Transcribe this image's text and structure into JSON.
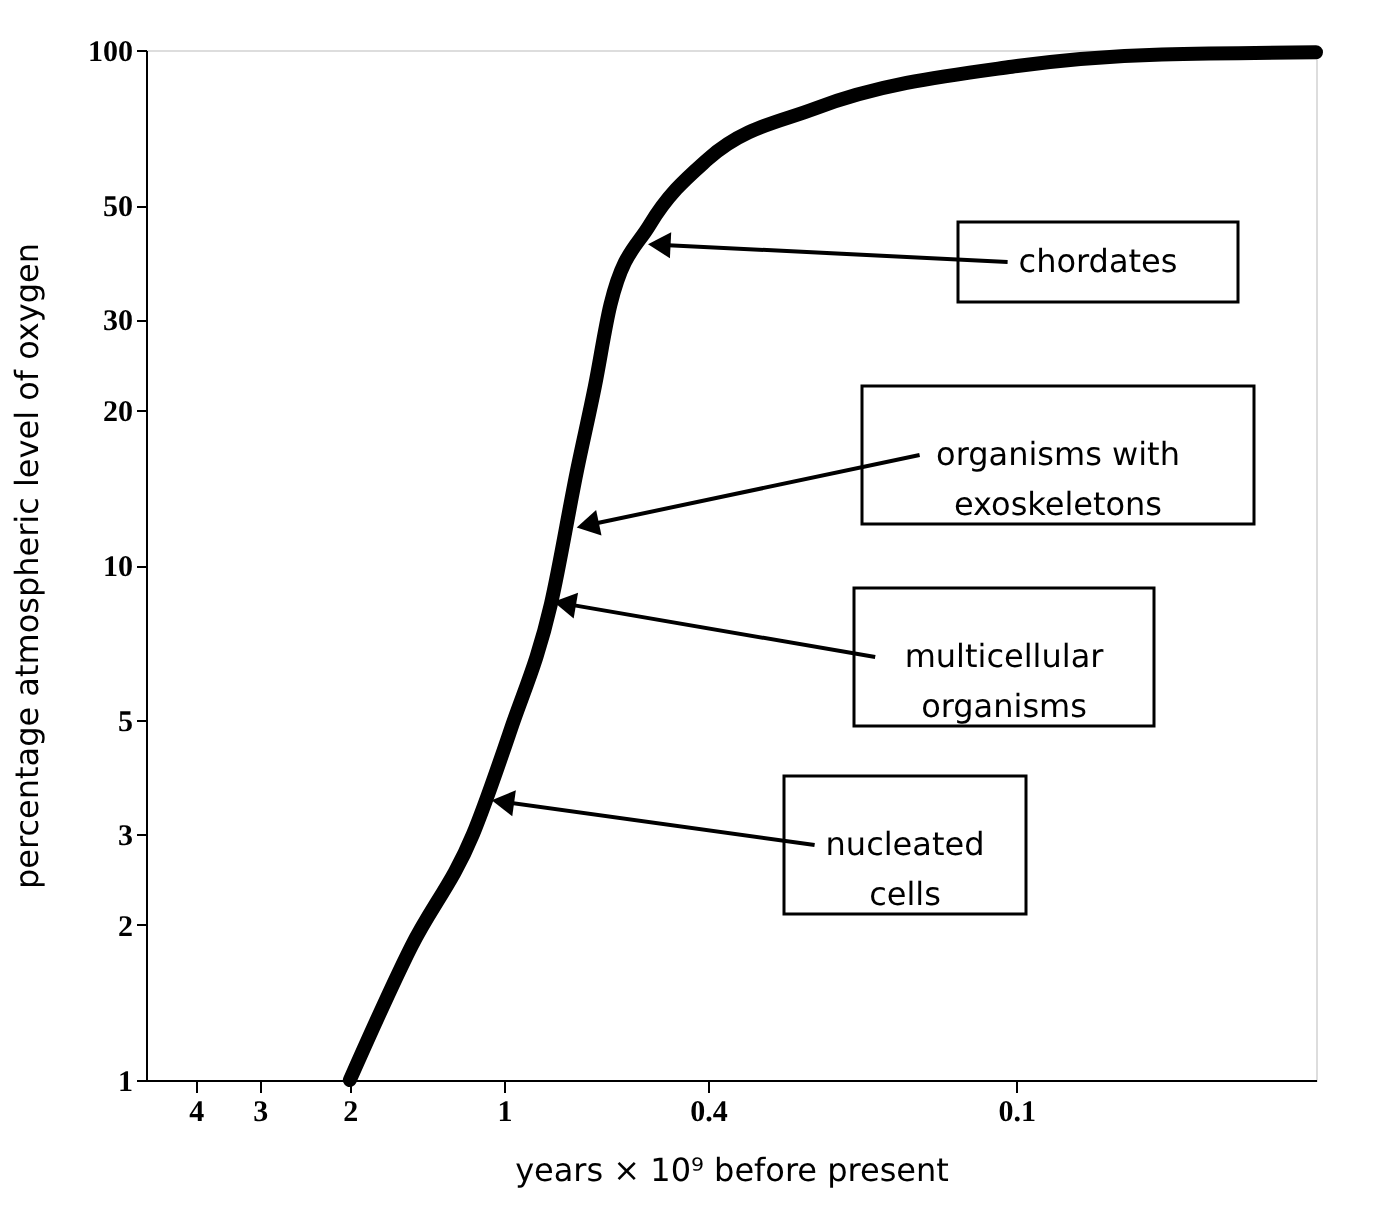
{
  "chart_data": {
    "type": "line",
    "xlabel": "years × 10⁹ before present",
    "ylabel": "percentage atmospheric level of oxygen",
    "x": [
      2,
      1.52,
      1.15,
      0.97,
      0.81,
      0.72,
      0.665,
      0.62,
      0.52,
      0.4,
      0.247,
      0.102,
      0.052,
      0.026
    ],
    "series": [
      {
        "color": "#000000",
        "values": [
          1,
          1.81,
          3.0,
          4.8,
          8.4,
          15.3,
          22.2,
          32,
          45.7,
          61.4,
          77,
          92.8,
          98,
          99
        ]
      }
    ],
    "xlim": [
      5,
      0.026
    ],
    "ylim": [
      1,
      100
    ],
    "xticks": [
      4,
      3,
      2,
      1,
      0.4,
      0.1
    ],
    "yticks": [
      1,
      2,
      3,
      5,
      10,
      20,
      30,
      50,
      100
    ],
    "log": "xy",
    "grid": false,
    "legend": false,
    "marker": "none",
    "line_style": "solid",
    "annotations": [
      {
        "text": "chordates",
        "x": 0.53,
        "y": 42
      },
      {
        "text": "organisms with\nexoskeletons",
        "x": 0.73,
        "y": 11.8
      },
      {
        "text": "multicellular\norganisms",
        "x": 0.81,
        "y": 8.5
      },
      {
        "text": "nucleated\ncells",
        "x": 1.07,
        "y": 3.5
      }
    ]
  }
}
